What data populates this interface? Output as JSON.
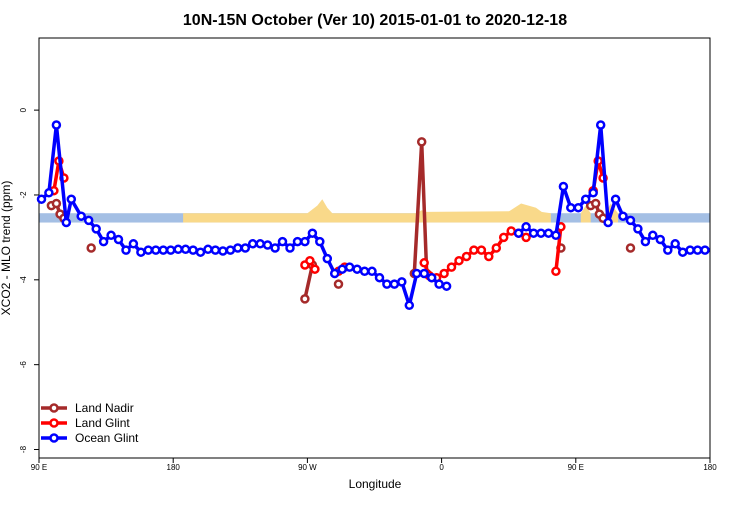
{
  "chart_data": {
    "type": "line",
    "title": "10N-15N October (Ver 10)   2015-01-01 to 2020-12-18",
    "xlabel": "Longitude",
    "ylabel": "XCO2 - MLO trend (ppm)",
    "xlim": [
      0,
      270
    ],
    "ylim": [
      -8.2,
      1.7
    ],
    "x_ticks": [
      {
        "value": 0,
        "label": "90 E"
      },
      {
        "value": 54,
        "label": "180"
      },
      {
        "value": 108,
        "label": "90 W"
      },
      {
        "value": 162,
        "label": "0"
      },
      {
        "value": 216,
        "label": "90 E"
      },
      {
        "value": 270,
        "label": "180"
      }
    ],
    "y_ticks": [
      {
        "value": 0,
        "label": "0"
      },
      {
        "value": -2,
        "label": "-2"
      },
      {
        "value": -4,
        "label": "-4"
      },
      {
        "value": -6,
        "label": "-6"
      },
      {
        "value": -8,
        "label": "-8"
      }
    ],
    "grid": false,
    "legend_position": "bottom-left",
    "background_bands": {
      "band_color": "#a4bfe4",
      "fill_color": "#f9d98a",
      "band_y": [
        -2.65,
        -2.43
      ],
      "fill_regions": [
        {
          "x": [
            108,
            112,
            114,
            116,
            118
          ],
          "top": [
            -2.43,
            -2.25,
            -2.1,
            -2.3,
            -2.43
          ]
        },
        {
          "x": [
            116,
            118,
            120,
            124,
            128,
            131
          ],
          "top": [
            -2.43,
            -2.58,
            -2.55,
            -2.52,
            -2.5,
            -2.43
          ]
        },
        {
          "x": [
            152,
            154,
            156,
            200,
            206
          ],
          "top": [
            -2.43,
            -2.36,
            -2.4,
            -2.38,
            -2.43
          ]
        },
        {
          "x": [
            188,
            194,
            200,
            203
          ],
          "top": [
            -2.43,
            -2.2,
            -2.3,
            -2.43
          ]
        },
        {
          "x": [
            218,
            220,
            222
          ],
          "top": [
            -2.43,
            -2.25,
            -2.43
          ]
        },
        {
          "x": [
            228,
            230,
            233
          ],
          "top": [
            -2.43,
            -2.2,
            -2.43
          ]
        },
        {
          "x": [
            58,
            160
          ],
          "top": [
            -2.43,
            -2.43
          ]
        }
      ]
    },
    "series": [
      {
        "name": "Land Nadir",
        "color": "#a52a2a",
        "segments": [
          {
            "x": [
              5,
              7,
              8.5,
              10
            ],
            "y": [
              -2.25,
              -2.2,
              -2.45,
              -2.55
            ]
          },
          {
            "x": [
              21
            ],
            "y": [
              -3.25
            ]
          },
          {
            "x": [
              107,
              110
            ],
            "y": [
              -4.45,
              -3.65
            ]
          },
          {
            "x": [
              120.5
            ],
            "y": [
              -4.1
            ]
          },
          {
            "x": [
              151,
              154,
              156,
              158
            ],
            "y": [
              -3.85,
              -0.75,
              -3.85,
              -3.95
            ]
          },
          {
            "x": [
              210
            ],
            "y": [
              -3.25
            ]
          },
          {
            "x": [
              222,
              224,
              225.5,
              227
            ],
            "y": [
              -2.25,
              -2.2,
              -2.45,
              -2.55
            ]
          },
          {
            "x": [
              238
            ],
            "y": [
              -3.25
            ]
          }
        ]
      },
      {
        "name": "Land Glint",
        "color": "#ff0000",
        "segments": [
          {
            "x": [
              6,
              8,
              10
            ],
            "y": [
              -1.9,
              -1.2,
              -1.6
            ]
          },
          {
            "x": [
              107,
              109,
              111
            ],
            "y": [
              -3.65,
              -3.55,
              -3.75
            ]
          },
          {
            "x": [
              120.5,
              123
            ],
            "y": [
              -3.8,
              -3.7
            ]
          },
          {
            "x": [
              155,
              157,
              160,
              163,
              166,
              169,
              172,
              175,
              178,
              181,
              184,
              187,
              190,
              193,
              196
            ],
            "y": [
              -3.6,
              -3.9,
              -3.95,
              -3.85,
              -3.7,
              -3.55,
              -3.45,
              -3.3,
              -3.3,
              -3.45,
              -3.25,
              -3.0,
              -2.85,
              -2.9,
              -3.0
            ]
          },
          {
            "x": [
              208,
              210
            ],
            "y": [
              -3.8,
              -2.75
            ]
          },
          {
            "x": [
              223,
              225,
              227
            ],
            "y": [
              -1.9,
              -1.2,
              -1.6
            ]
          }
        ]
      },
      {
        "name": "Ocean Glint",
        "color": "#0000ff",
        "segments": [
          {
            "x": [
              1,
              4,
              7,
              11,
              13,
              17,
              20,
              23,
              26,
              29,
              32,
              35,
              38,
              41,
              44,
              47,
              50,
              53,
              56,
              59,
              62,
              65,
              68,
              71,
              74,
              77,
              80,
              83,
              86,
              89,
              92,
              95,
              98,
              101,
              104,
              107,
              110,
              113,
              116,
              119,
              122,
              125,
              128,
              131,
              134,
              137,
              140,
              143,
              146,
              149,
              152,
              155,
              158,
              161,
              164
            ],
            "y": [
              -2.1,
              -1.95,
              -0.35,
              -2.65,
              -2.1,
              -2.5,
              -2.6,
              -2.8,
              -3.1,
              -2.95,
              -3.05,
              -3.3,
              -3.15,
              -3.35,
              -3.3,
              -3.3,
              -3.3,
              -3.3,
              -3.28,
              -3.28,
              -3.3,
              -3.35,
              -3.28,
              -3.3,
              -3.32,
              -3.3,
              -3.25,
              -3.25,
              -3.15,
              -3.15,
              -3.18,
              -3.25,
              -3.1,
              -3.25,
              -3.1,
              -3.1,
              -2.9,
              -3.1,
              -3.5,
              -3.85,
              -3.75,
              -3.7,
              -3.75,
              -3.8,
              -3.8,
              -3.95,
              -4.1,
              -4.1,
              -4.05,
              -4.6,
              -3.85,
              -3.85,
              -3.95,
              -4.1,
              -4.15
            ]
          },
          {
            "x": [
              193,
              196,
              199,
              202,
              205,
              208,
              211,
              214,
              217,
              220,
              223,
              226,
              229,
              232,
              235,
              238,
              241,
              244,
              247,
              250,
              253,
              256,
              259,
              262,
              265,
              268
            ],
            "y": [
              -2.9,
              -2.75,
              -2.9,
              -2.9,
              -2.9,
              -2.95,
              -1.8,
              -2.3,
              -2.3,
              -2.1,
              -1.95,
              -0.35,
              -2.65,
              -2.1,
              -2.5,
              -2.6,
              -2.8,
              -3.1,
              -2.95,
              -3.05,
              -3.3,
              -3.15,
              -3.35,
              -3.3,
              -3.3,
              -3.3
            ]
          }
        ]
      }
    ]
  }
}
